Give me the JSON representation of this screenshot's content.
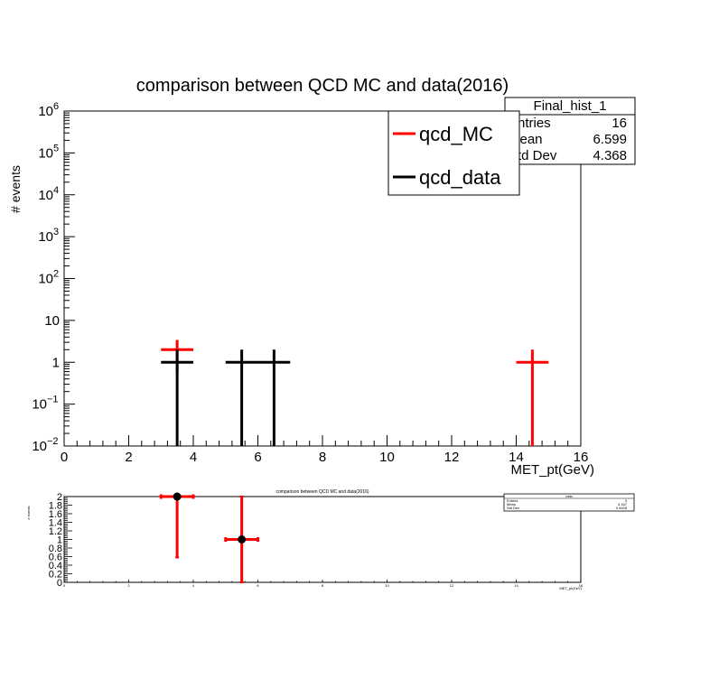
{
  "chart_data": [
    {
      "type": "histogram",
      "title": "comparison between QCD MC and data(2016)",
      "xlabel": "MET_pt(GeV)",
      "ylabel": "# events",
      "xlim": [
        0,
        16
      ],
      "ylim": [
        0.01,
        1000000
      ],
      "yscale": "log",
      "x_ticks": [
        "0",
        "2",
        "4",
        "6",
        "8",
        "10",
        "12",
        "14",
        "16"
      ],
      "y_ticks": [
        {
          "base": "10",
          "exp": "6"
        },
        {
          "base": "10",
          "exp": "5"
        },
        {
          "base": "10",
          "exp": "4"
        },
        {
          "base": "10",
          "exp": "3"
        },
        {
          "base": "10",
          "exp": "2"
        },
        {
          "base": "10",
          "exp": ""
        },
        {
          "base": "1",
          "exp": ""
        },
        {
          "base": "10",
          "exp": "−1"
        },
        {
          "base": "10",
          "exp": "−2"
        }
      ],
      "y_tick_values": [
        1000000,
        100000,
        10000,
        1000,
        100,
        10,
        1,
        0.1,
        0.01
      ],
      "legend": {
        "position": "top-right",
        "entries": [
          {
            "label": "qcd_MC",
            "color": "#ff0000"
          },
          {
            "label": "qcd_data",
            "color": "#000000"
          }
        ]
      },
      "stats_box": {
        "title": "Final_hist_1",
        "rows": [
          {
            "label": "Entries",
            "value": "16"
          },
          {
            "label": "Mean",
            "value": "6.599"
          },
          {
            "label": "Std Dev",
            "value": "4.368"
          }
        ]
      },
      "series": [
        {
          "name": "qcd_MC",
          "color": "#ff0000",
          "points": [
            {
              "x": 3.5,
              "y": 2,
              "xerr": 0.5
            },
            {
              "x": 14.5,
              "y": 1,
              "xerr": 0.5
            }
          ]
        },
        {
          "name": "qcd_data",
          "color": "#000000",
          "points": [
            {
              "x": 3.5,
              "y": 1,
              "xerr": 0.5
            },
            {
              "x": 5.5,
              "y": 1,
              "xerr": 0.5
            },
            {
              "x": 6.5,
              "y": 1,
              "xerr": 0.5
            }
          ]
        }
      ]
    },
    {
      "type": "scatter",
      "title": "comparison between QCD MC and data(2016)",
      "xlabel": "MET_pt(GeV)",
      "ylabel": "# events",
      "xlim": [
        0,
        16
      ],
      "ylim": [
        0,
        2
      ],
      "x_ticks": [
        "0",
        "2",
        "4",
        "6",
        "8",
        "10",
        "12",
        "14",
        "16"
      ],
      "y_ticks": [
        "2",
        "1.8",
        "1.6",
        "1.4",
        "1.2",
        "1",
        "0.8",
        "0.6",
        "0.4",
        "0.2",
        "0"
      ],
      "stats_box": {
        "title": "ratio",
        "rows": [
          {
            "label": "Entries",
            "value": "3"
          },
          {
            "label": "Mean",
            "value": "4.167"
          },
          {
            "label": "Std Dev",
            "value": "0.9428"
          }
        ]
      },
      "points": [
        {
          "x": 3.5,
          "y": 2,
          "xerr": 0.5,
          "yerr_low": 1.42,
          "yerr_high": 0
        },
        {
          "x": 5.5,
          "y": 1,
          "xerr": 0.5,
          "yerr_low": 1,
          "yerr_high": 1
        }
      ],
      "marker_color": "#000000",
      "error_color": "#ff0000"
    }
  ]
}
